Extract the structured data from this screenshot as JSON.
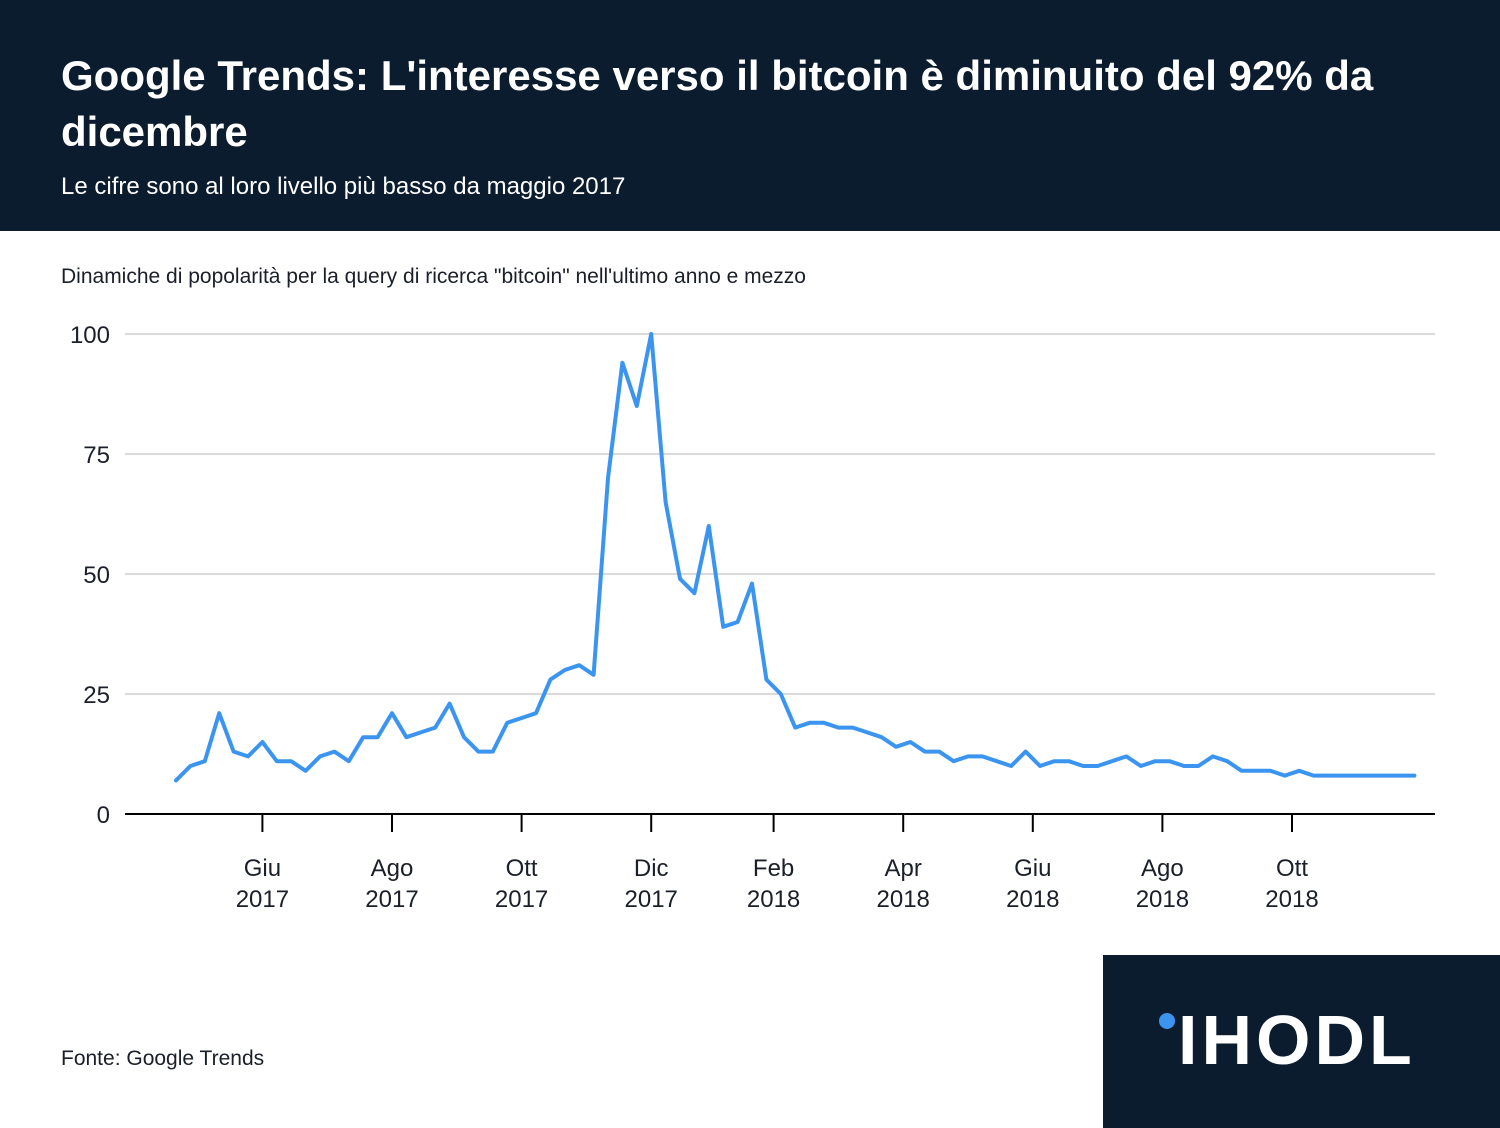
{
  "header": {
    "title": "Google Trends: L'interesse verso il bitcoin è diminuito del 92% da dicembre",
    "subtitle": "Le cifre sono al loro livello più basso da maggio 2017"
  },
  "caption": "Dinamiche di popolarità per la query di ricerca \"bitcoin\" nell'ultimo anno e mezzo",
  "source": "Fonte: Google Trends",
  "logo": "IHODL",
  "colors": {
    "header_bg": "#0b1c2e",
    "line": "#3b95f0",
    "grid": "#b5b5b5"
  },
  "chart_data": {
    "type": "line",
    "x_unit": "weeks since 2017-05-07 (weekly data)",
    "ylim": [
      0,
      100
    ],
    "yticks": [
      0,
      25,
      50,
      75,
      100
    ],
    "xticks": [
      {
        "week": 6,
        "line1": "Giu",
        "line2": "2017"
      },
      {
        "week": 15,
        "line1": "Ago",
        "line2": "2017"
      },
      {
        "week": 24,
        "line1": "Ott",
        "line2": "2017"
      },
      {
        "week": 33,
        "line1": "Dic",
        "line2": "2017"
      },
      {
        "week": 41.5,
        "line1": "Feb",
        "line2": "2018"
      },
      {
        "week": 50.5,
        "line1": "Apr",
        "line2": "2018"
      },
      {
        "week": 59.5,
        "line1": "Giu",
        "line2": "2018"
      },
      {
        "week": 68.5,
        "line1": "Ago",
        "line2": "2018"
      },
      {
        "week": 77.5,
        "line1": "Ott",
        "line2": "2018"
      }
    ],
    "grid": true,
    "series": [
      {
        "name": "",
        "values": [
          7,
          10,
          11,
          21,
          13,
          12,
          15,
          11,
          11,
          9,
          12,
          13,
          11,
          16,
          16,
          21,
          16,
          17,
          18,
          23,
          16,
          13,
          13,
          19,
          20,
          21,
          28,
          30,
          31,
          29,
          70,
          94,
          85,
          100,
          65,
          49,
          46,
          60,
          39,
          40,
          48,
          28,
          25,
          18,
          19,
          19,
          18,
          18,
          17,
          16,
          14,
          15,
          13,
          13,
          11,
          12,
          12,
          11,
          10,
          13,
          10,
          11,
          11,
          10,
          10,
          11,
          12,
          10,
          11,
          11,
          10,
          10,
          12,
          11,
          9,
          9,
          9,
          8,
          9,
          8,
          8,
          8,
          8,
          8,
          8,
          8,
          8
        ]
      }
    ]
  }
}
